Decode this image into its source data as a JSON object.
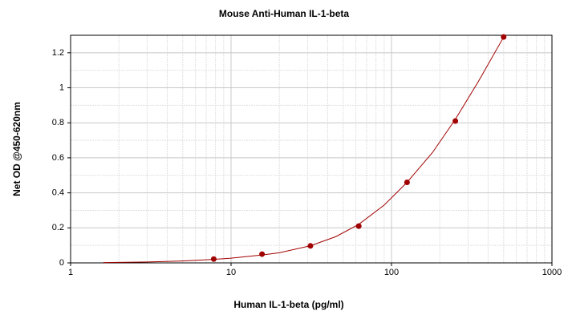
{
  "chart_data": {
    "type": "scatter",
    "title": "Mouse Anti-Human IL-1-beta",
    "x_label": "Human IL-1-beta (pg/ml)",
    "y_label": "Net OD @450-620nm",
    "x_scale": "log",
    "xlim": [
      1,
      1000
    ],
    "xticks": [
      1,
      10,
      100,
      1000
    ],
    "ylim": [
      0,
      1.3
    ],
    "yticks": [
      0,
      0.2,
      0.4,
      0.6,
      0.8,
      1,
      1.2
    ],
    "grid": true,
    "series": [
      {
        "kind": "points",
        "color": "#a00000",
        "x": [
          7.8,
          15.6,
          31.25,
          62.5,
          125,
          250,
          500
        ],
        "values": [
          0.022,
          0.05,
          0.097,
          0.21,
          0.46,
          0.81,
          1.29
        ]
      },
      {
        "kind": "curve",
        "color": "#a00000",
        "x": [
          1.6,
          2,
          3,
          5,
          7.8,
          10,
          15.6,
          20,
          31.25,
          45,
          62.5,
          90,
          125,
          180,
          250,
          350,
          500
        ],
        "values": [
          0.002,
          0.003,
          0.005,
          0.011,
          0.02,
          0.027,
          0.045,
          0.058,
          0.098,
          0.15,
          0.22,
          0.33,
          0.46,
          0.63,
          0.82,
          1.04,
          1.29
        ]
      }
    ]
  }
}
